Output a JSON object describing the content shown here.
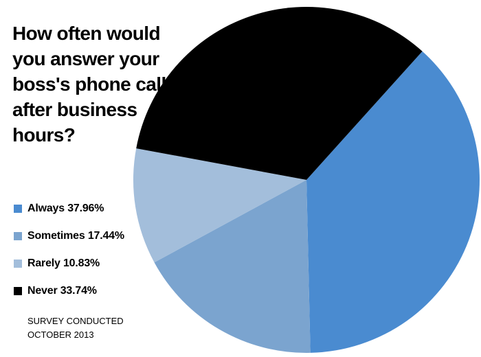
{
  "chart_data": {
    "type": "pie",
    "title": "How often would you answer your boss's phone call after business hours?",
    "categories": [
      "Always",
      "Sometimes",
      "Rarely",
      "Never"
    ],
    "values": [
      37.96,
      17.44,
      10.83,
      33.74
    ],
    "value_labels": [
      "37.96%",
      "17.44%",
      "10.83%",
      "33.74%"
    ],
    "colors": [
      "#4a8bd0",
      "#7ba4cf",
      "#a3bedb",
      "#000000"
    ],
    "note": "SURVEY CONDUCTED OCTOBER 2013"
  }
}
